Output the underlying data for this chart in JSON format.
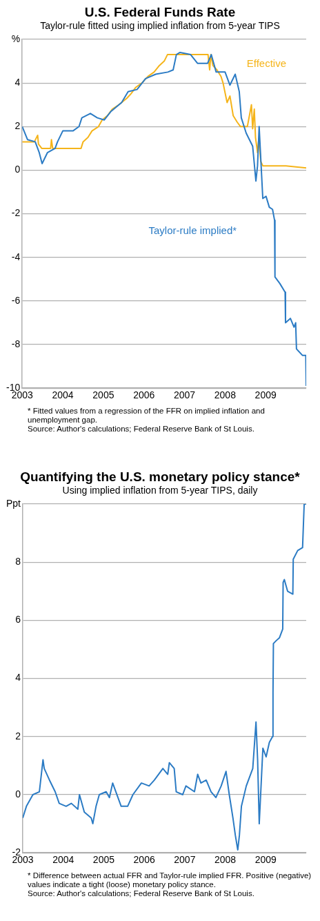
{
  "chart_data": [
    {
      "type": "line",
      "title": "U.S. Federal Funds Rate",
      "subtitle": "Taylor-rule fitted using implied inflation from 5-year TIPS",
      "xlim": [
        2003,
        2010
      ],
      "xticks": [
        2003,
        2004,
        2005,
        2006,
        2007,
        2008,
        2009
      ],
      "ylim": [
        -10,
        6
      ],
      "yticks": [
        {
          "value": 6,
          "label": "%"
        },
        4,
        2,
        0,
        -2,
        -4,
        -6,
        -8,
        -10
      ],
      "grid": "y",
      "legend": false,
      "series": [
        {
          "name": "Taylor-rule implied*",
          "color": "#2b7bc4",
          "x": [
            2003.0,
            2003.13,
            2003.32,
            2003.42,
            2003.49,
            2003.62,
            2003.81,
            2003.87,
            2004.0,
            2004.25,
            2004.4,
            2004.47,
            2004.68,
            2004.85,
            2005.02,
            2005.19,
            2005.45,
            2005.61,
            2005.83,
            2006.04,
            2006.29,
            2006.59,
            2006.72,
            2006.8,
            2006.89,
            2007.15,
            2007.32,
            2007.57,
            2007.66,
            2007.78,
            2008.0,
            2008.12,
            2008.25,
            2008.35,
            2008.4,
            2008.52,
            2008.68,
            2008.76,
            2008.8,
            2008.84,
            2008.93,
            2009.01,
            2009.09,
            2009.17,
            2009.22,
            2009.23,
            2009.35,
            2009.48,
            2009.49,
            2009.61,
            2009.7,
            2009.74,
            2009.76,
            2009.91,
            2009.99,
            2010.0
          ],
          "values": [
            2.0,
            1.4,
            1.3,
            0.8,
            0.3,
            0.8,
            1.0,
            1.3,
            1.8,
            1.8,
            2.0,
            2.4,
            2.6,
            2.4,
            2.3,
            2.7,
            3.1,
            3.6,
            3.7,
            4.2,
            4.4,
            4.5,
            4.6,
            5.3,
            5.4,
            5.3,
            4.9,
            4.9,
            5.3,
            4.5,
            4.5,
            3.9,
            4.4,
            3.6,
            2.4,
            1.7,
            1.1,
            -0.5,
            0.2,
            2.0,
            -1.3,
            -1.2,
            -1.7,
            -1.8,
            -2.3,
            -4.9,
            -5.2,
            -5.6,
            -7.0,
            -6.8,
            -7.2,
            -7.0,
            -8.2,
            -8.5,
            -8.5,
            -9.9
          ]
        },
        {
          "name": "Effective",
          "color": "#f5b41a",
          "x": [
            2003.0,
            2003.3,
            2003.38,
            2003.4,
            2003.48,
            2003.7,
            2003.72,
            2003.75,
            2004.45,
            2004.5,
            2004.62,
            2004.72,
            2004.88,
            2004.97,
            2005.1,
            2005.22,
            2005.38,
            2005.58,
            2005.68,
            2005.8,
            2005.95,
            2006.1,
            2006.25,
            2006.38,
            2006.5,
            2006.58,
            2007.58,
            2007.62,
            2007.65,
            2007.7,
            2007.8,
            2007.9,
            2007.95,
            2008.05,
            2008.12,
            2008.2,
            2008.3,
            2008.38,
            2008.55,
            2008.65,
            2008.68,
            2008.72,
            2008.75,
            2008.8,
            2008.83,
            2008.88,
            2008.93,
            2009.0,
            2009.5,
            2010.0
          ],
          "values": [
            1.3,
            1.3,
            1.6,
            1.2,
            1.0,
            1.0,
            1.4,
            1.0,
            1.0,
            1.3,
            1.5,
            1.8,
            2.0,
            2.3,
            2.5,
            2.8,
            3.0,
            3.3,
            3.5,
            3.8,
            4.0,
            4.3,
            4.5,
            4.8,
            5.0,
            5.3,
            5.3,
            4.6,
            5.3,
            4.8,
            4.6,
            4.3,
            4.0,
            3.1,
            3.4,
            2.5,
            2.2,
            2.0,
            2.0,
            3.0,
            1.9,
            2.8,
            1.5,
            0.8,
            1.4,
            0.4,
            0.2,
            0.2,
            0.2,
            0.1
          ]
        }
      ],
      "annotations": [
        "* Fitted values from a regression of the FFR on implied inflation and unemployment gap.",
        "Source: Author's calculations; Federal Reserve Bank of St Louis."
      ]
    },
    {
      "type": "line",
      "title": "Quantifying the U.S. monetary policy stance*",
      "subtitle": "Using implied inflation from 5-year TIPS, daily",
      "xlim": [
        2003,
        2010
      ],
      "xticks": [
        2003,
        2004,
        2005,
        2006,
        2007,
        2008,
        2009
      ],
      "ylim": [
        -2,
        10
      ],
      "yticks": [
        {
          "value": 10,
          "label": "Ppt"
        },
        8,
        6,
        4,
        2,
        0,
        -2
      ],
      "grid": "y",
      "legend": false,
      "series": [
        {
          "color": "#2b7bc4",
          "x": [
            2003.0,
            2003.09,
            2003.25,
            2003.41,
            2003.5,
            2003.53,
            2003.66,
            2003.8,
            2003.9,
            2004.07,
            2004.2,
            2004.36,
            2004.4,
            2004.52,
            2004.69,
            2004.73,
            2004.81,
            2004.89,
            2005.06,
            2005.14,
            2005.22,
            2005.43,
            2005.59,
            2005.72,
            2005.93,
            2006.12,
            2006.25,
            2006.46,
            2006.58,
            2006.62,
            2006.74,
            2006.79,
            2006.95,
            2007.03,
            2007.24,
            2007.32,
            2007.4,
            2007.53,
            2007.65,
            2007.77,
            2007.9,
            2008.02,
            2008.1,
            2008.19,
            2008.25,
            2008.31,
            2008.35,
            2008.4,
            2008.52,
            2008.68,
            2008.76,
            2008.8,
            2008.84,
            2008.93,
            2009.01,
            2009.09,
            2009.17,
            2009.18,
            2009.19,
            2009.26,
            2009.34,
            2009.42,
            2009.43,
            2009.46,
            2009.54,
            2009.67,
            2009.68,
            2009.79,
            2009.91,
            2009.95,
            2010.0
          ],
          "values": [
            -0.8,
            -0.4,
            0.0,
            0.1,
            1.2,
            0.9,
            0.5,
            0.1,
            -0.3,
            -0.4,
            -0.3,
            -0.5,
            0.0,
            -0.6,
            -0.8,
            -1.0,
            -0.4,
            0.0,
            0.1,
            -0.1,
            0.4,
            -0.4,
            -0.4,
            0.0,
            0.4,
            0.3,
            0.5,
            0.9,
            0.7,
            1.1,
            0.9,
            0.1,
            0.0,
            0.3,
            0.1,
            0.7,
            0.4,
            0.5,
            0.1,
            -0.1,
            0.3,
            0.8,
            0.0,
            -0.8,
            -1.4,
            -1.9,
            -1.4,
            -0.4,
            0.3,
            0.9,
            2.5,
            1.2,
            -1.0,
            1.6,
            1.3,
            1.8,
            2.0,
            3.5,
            5.2,
            5.3,
            5.4,
            5.7,
            7.3,
            7.4,
            7.0,
            6.9,
            8.1,
            8.4,
            8.5,
            10.0,
            10.0
          ]
        }
      ],
      "annotations": [
        "* Difference between actual FFR and Taylor-rule implied FFR. Positive (negative) values indicate a tight (loose) monetary policy stance.",
        "Source: Author's calculations; Federal Reserve Bank of St Louis."
      ]
    }
  ]
}
